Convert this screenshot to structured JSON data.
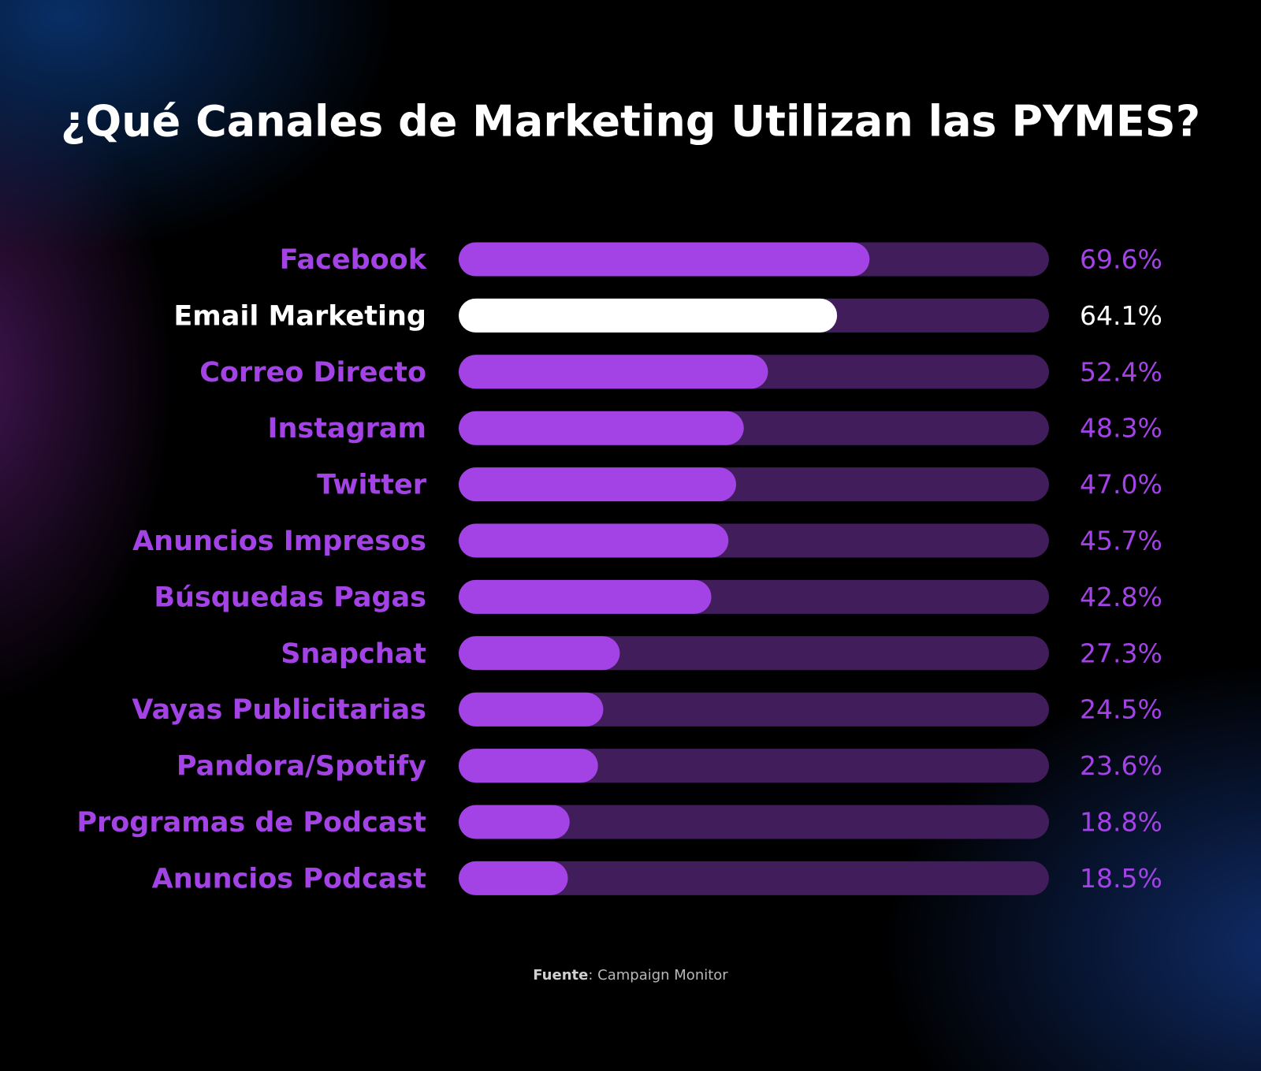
{
  "chart_data": {
    "type": "bar",
    "orientation": "horizontal",
    "title": "¿Qué Canales de Marketing Utilizan las PYMES?",
    "categories": [
      "Facebook",
      "Email Marketing",
      "Correo Directo",
      "Instagram",
      "Twitter",
      "Anuncios Impresos",
      "Búsquedas Pagas",
      "Snapchat",
      "Vayas Publicitarias",
      "Pandora/Spotify",
      "Programas de Podcast",
      "Anuncios Podcast"
    ],
    "values": [
      69.6,
      64.1,
      52.4,
      48.3,
      47.0,
      45.7,
      42.8,
      27.3,
      24.5,
      23.6,
      18.8,
      18.5
    ],
    "value_labels": [
      "69.6%",
      "64.1%",
      "52.4%",
      "48.3%",
      "47.0%",
      "45.7%",
      "42.8%",
      "27.3%",
      "24.5%",
      "23.6%",
      "18.8%",
      "18.5%"
    ],
    "colors": [
      "#a343e6",
      "#ffffff",
      "#a343e6",
      "#a343e6",
      "#a343e6",
      "#a343e6",
      "#a343e6",
      "#a343e6",
      "#a343e6",
      "#a343e6",
      "#a343e6",
      "#a343e6"
    ],
    "track_color": "#421d5c",
    "xlim": [
      0,
      100
    ],
    "source_label": "Fuente",
    "source_text": ": Campaign Monitor"
  }
}
